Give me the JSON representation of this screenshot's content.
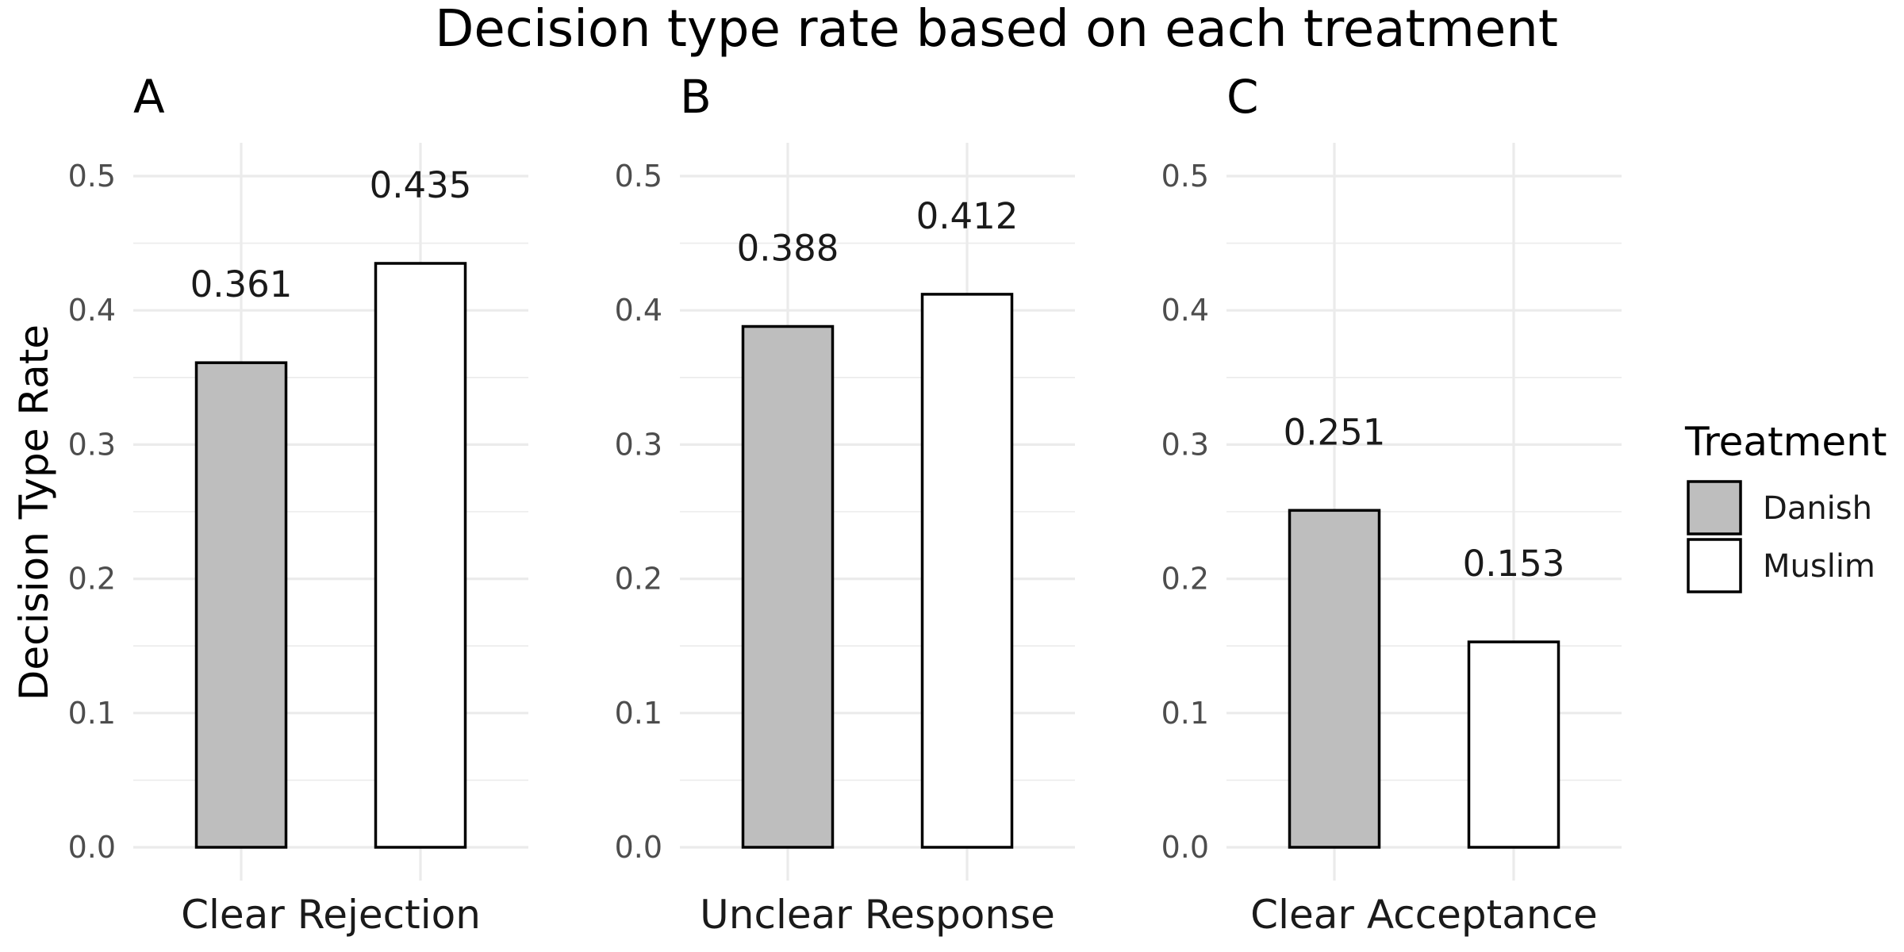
{
  "chart_data": {
    "type": "bar",
    "title": "Decision type rate based on each treatment",
    "ylabel": "Decision Type Rate",
    "ylim": [
      0,
      0.5
    ],
    "yticks": [
      "0.0",
      "0.1",
      "0.2",
      "0.3",
      "0.4",
      "0.5"
    ],
    "grid": true,
    "legend": {
      "title": "Treatment",
      "position": "right",
      "entries": [
        {
          "name": "Danish",
          "color": "#bebebe"
        },
        {
          "name": "Muslim",
          "color": "#ffffff"
        }
      ]
    },
    "panels": [
      {
        "label": "A",
        "category": "Clear Rejection",
        "bars": [
          {
            "series": "Danish",
            "value": 0.361,
            "label": "0.361"
          },
          {
            "series": "Muslim",
            "value": 0.435,
            "label": "0.435"
          }
        ]
      },
      {
        "label": "B",
        "category": "Unclear Response",
        "bars": [
          {
            "series": "Danish",
            "value": 0.388,
            "label": "0.388"
          },
          {
            "series": "Muslim",
            "value": 0.412,
            "label": "0.412"
          }
        ]
      },
      {
        "label": "C",
        "category": "Clear Acceptance",
        "bars": [
          {
            "series": "Danish",
            "value": 0.251,
            "label": "0.251"
          },
          {
            "series": "Muslim",
            "value": 0.153,
            "label": "0.153"
          }
        ]
      }
    ]
  }
}
